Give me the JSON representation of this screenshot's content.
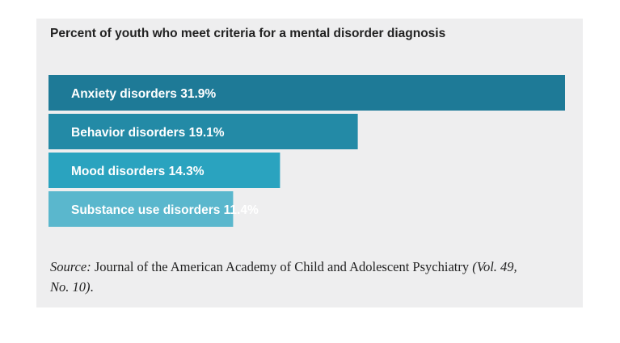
{
  "chart_data": {
    "type": "bar",
    "orientation": "horizontal",
    "title": "Percent of youth who meet criteria for a mental disorder diagnosis",
    "categories": [
      "Anxiety disorders",
      "Behavior disorders",
      "Mood disorders",
      "Substance use disorders"
    ],
    "values": [
      31.9,
      19.1,
      14.3,
      11.4
    ],
    "labels": [
      "Anxiety disorders 31.9%",
      "Behavior disorders 19.1%",
      "Mood disorders 14.3%",
      "Substance use disorders 11.4%"
    ],
    "colors": [
      "#1e7a97",
      "#238aa6",
      "#2aa3bf",
      "#5ab7cd"
    ],
    "xlabel": "",
    "ylabel": "",
    "grid": false
  },
  "source": {
    "label": "Source:",
    "text": " Journal of the American Academy of Child and Adolescent Psychiatry ",
    "volume": "(Vol. 49, No. 10)",
    "end": "."
  }
}
